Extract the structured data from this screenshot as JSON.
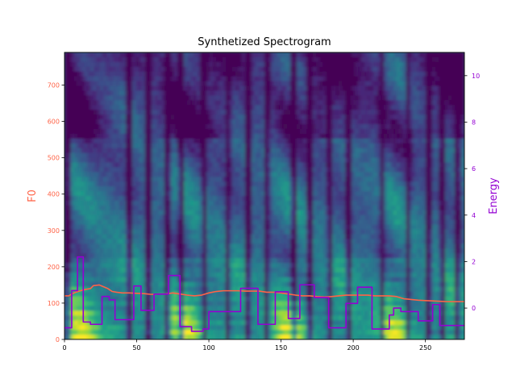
{
  "chart_data": {
    "type": "heatmap",
    "title": "Synthetized Spectrogram",
    "xlabel": "",
    "ylabel_left": "F0",
    "ylabel_right": "Energy",
    "xlim": [
      0,
      277
    ],
    "ylim_left": [
      0,
      790
    ],
    "ylim_right": [
      -1.35,
      11
    ],
    "x_ticks": [
      0,
      50,
      100,
      150,
      200,
      250
    ],
    "y_ticks_left": [
      0,
      100,
      200,
      300,
      400,
      500,
      600,
      700
    ],
    "y_ticks_right": [
      0,
      2,
      4,
      6,
      8,
      10
    ],
    "colors": {
      "f0": "#ff6347",
      "energy": "#9400d3",
      "colormap": "viridis"
    },
    "series": [
      {
        "axis": "left",
        "color": "#ff6347",
        "x": [
          0,
          3,
          5,
          8,
          12,
          15,
          18,
          20,
          24,
          27,
          30,
          33,
          36,
          40,
          45,
          50,
          55,
          60,
          65,
          70,
          75,
          80,
          85,
          90,
          95,
          100,
          105,
          110,
          115,
          120,
          125,
          130,
          135,
          140,
          145,
          150,
          155,
          160,
          165,
          170,
          175,
          180,
          185,
          190,
          195,
          200,
          205,
          210,
          215,
          220,
          225,
          230,
          235,
          240,
          245,
          250,
          255,
          260,
          265,
          270,
          277
        ],
        "values": [
          120,
          120,
          125,
          130,
          135,
          138,
          140,
          148,
          150,
          145,
          140,
          132,
          130,
          128,
          128,
          127,
          126,
          124,
          125,
          125,
          128,
          125,
          122,
          120,
          122,
          128,
          132,
          134,
          134,
          134,
          133,
          133,
          133,
          130,
          130,
          128,
          125,
          122,
          120,
          120,
          118,
          117,
          118,
          120,
          122,
          122,
          122,
          122,
          120,
          120,
          120,
          118,
          112,
          110,
          108,
          107,
          106,
          105,
          104,
          104,
          104
        ]
      },
      {
        "axis": "right",
        "color": "#9400d3",
        "x": [
          0,
          5,
          5,
          9,
          9,
          13,
          13,
          18,
          18,
          26,
          26,
          31,
          31,
          35,
          35,
          48,
          48,
          53,
          53,
          62,
          62,
          72,
          72,
          80,
          80,
          88,
          88,
          96,
          96,
          100,
          100,
          122,
          122,
          134,
          134,
          146,
          146,
          155,
          155,
          163,
          163,
          173,
          173,
          183,
          183,
          195,
          195,
          203,
          203,
          213,
          213,
          225,
          225,
          228,
          228,
          233,
          233,
          245,
          245,
          255,
          255,
          260,
          260,
          277
        ],
        "values": [
          -0.85,
          -0.85,
          0.75,
          0.75,
          2.2,
          2.2,
          -0.6,
          -0.6,
          -0.7,
          -0.7,
          0.5,
          0.5,
          0.35,
          0.35,
          -0.5,
          -0.5,
          0.95,
          0.95,
          -0.1,
          -0.1,
          0.6,
          0.6,
          1.4,
          1.4,
          -0.8,
          -0.8,
          -1.0,
          -1.0,
          -0.9,
          -0.9,
          -0.15,
          -0.15,
          0.85,
          0.85,
          -0.7,
          -0.7,
          0.7,
          0.7,
          -0.45,
          -0.45,
          1.0,
          1.0,
          0.45,
          0.45,
          -0.85,
          -0.85,
          0.2,
          0.2,
          0.9,
          0.9,
          -0.9,
          -0.9,
          -0.3,
          -0.3,
          0.0,
          0.0,
          -0.15,
          -0.15,
          -0.55,
          -0.55,
          0.15,
          0.15,
          -0.75,
          -0.75
        ]
      }
    ]
  }
}
